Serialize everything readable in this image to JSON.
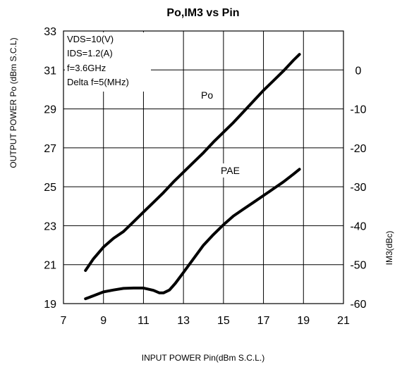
{
  "chart_data": {
    "type": "line",
    "title": "Po,IM3 vs Pin",
    "xlabel": "INPUT POWER Pin(dBm S.C.L.)",
    "ylabel_left": "OUTPUT POWER Po (dBm S.C.L)",
    "ylabel_right": "IM3(dBc)",
    "xlim": [
      7,
      21
    ],
    "ylim_left": [
      19,
      33
    ],
    "ylim_right": [
      -60,
      10
    ],
    "x_ticks": [
      "7",
      "9",
      "11",
      "13",
      "15",
      "17",
      "19",
      "21"
    ],
    "y_ticks_left": [
      "19",
      "21",
      "23",
      "25",
      "27",
      "29",
      "31",
      "33"
    ],
    "y_ticks_right": [
      "-60",
      "-50",
      "-40",
      "-30",
      "-20",
      "-10",
      "0"
    ],
    "grid": true,
    "conditions": [
      "VDS=10(V)",
      "IDS=1.2(A)",
      "f=3.6GHz",
      "Delta f=5(MHz)"
    ],
    "series": [
      {
        "name": "Po",
        "axis": "left",
        "x": [
          8.1,
          8.5,
          9.0,
          9.5,
          10.0,
          10.5,
          11.0,
          11.5,
          12.0,
          12.5,
          13.0,
          13.5,
          14.0,
          14.5,
          15.0,
          15.5,
          16.0,
          16.5,
          17.0,
          17.5,
          18.0,
          18.5,
          18.8
        ],
        "y": [
          20.7,
          21.3,
          21.9,
          22.35,
          22.7,
          23.2,
          23.7,
          24.2,
          24.7,
          25.25,
          25.75,
          26.25,
          26.75,
          27.3,
          27.8,
          28.3,
          28.85,
          29.4,
          29.95,
          30.45,
          30.95,
          31.5,
          31.8
        ]
      },
      {
        "name": "PAE",
        "axis": "left",
        "x": [
          8.1,
          8.5,
          9.0,
          9.5,
          10.0,
          10.5,
          11.0,
          11.5,
          11.8,
          12.0,
          12.3,
          12.6,
          13.0,
          13.5,
          14.0,
          14.5,
          15.0,
          15.5,
          16.0,
          16.5,
          17.0,
          17.5,
          18.0,
          18.5,
          18.8
        ],
        "y": [
          19.25,
          19.4,
          19.6,
          19.7,
          19.78,
          19.8,
          19.8,
          19.68,
          19.55,
          19.55,
          19.7,
          20.05,
          20.6,
          21.3,
          22.0,
          22.55,
          23.05,
          23.5,
          23.85,
          24.2,
          24.55,
          24.9,
          25.25,
          25.65,
          25.9
        ]
      }
    ]
  }
}
